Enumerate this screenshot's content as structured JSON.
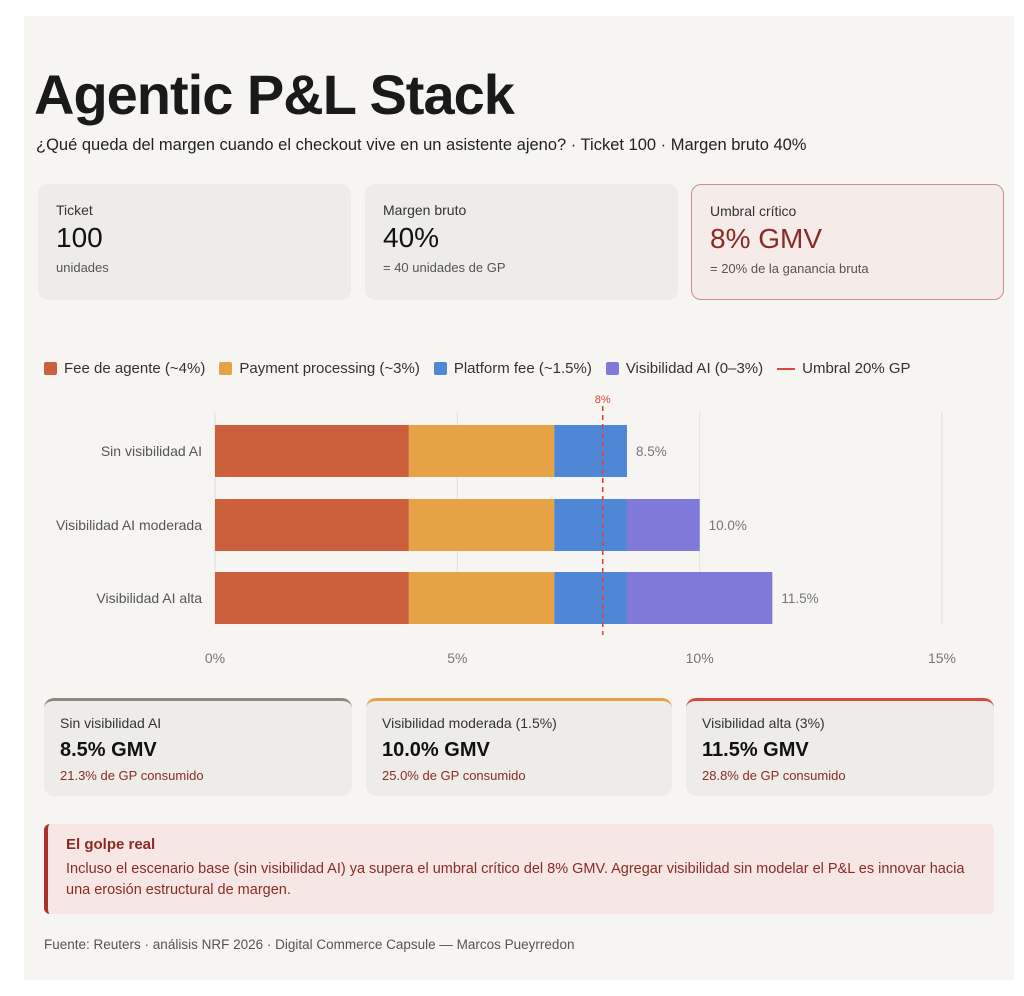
{
  "header": {
    "title": "Agentic P&L Stack",
    "subtitle": "¿Qué queda del margen cuando el checkout vive en un asistente ajeno? · Ticket 100 · Margen bruto 40%"
  },
  "kpis": [
    {
      "label": "Ticket",
      "value": "100",
      "note": "unidades"
    },
    {
      "label": "Margen bruto",
      "value": "40%",
      "note": "= 40 unidades de GP"
    },
    {
      "label": "Umbral crítico",
      "value": "8% GMV",
      "note": "= 20% de la ganancia bruta"
    }
  ],
  "legend": [
    {
      "label": "Fee de agente (~4%)",
      "color": "#cc5f3c"
    },
    {
      "label": "Payment processing (~3%)",
      "color": "#e6a346"
    },
    {
      "label": "Platform fee (~1.5%)",
      "color": "#4f86d6"
    },
    {
      "label": "Visibilidad AI (0–3%)",
      "color": "#7f79da"
    },
    {
      "label": "Umbral 20% GP",
      "color": "#d9473e"
    }
  ],
  "chart_data": {
    "type": "bar",
    "orientation": "horizontal",
    "stacked": true,
    "categories": [
      "Sin visibilidad AI",
      "Visibilidad AI moderada",
      "Visibilidad AI alta"
    ],
    "series": [
      {
        "name": "Fee de agente (~4%)",
        "color": "#cc5f3c",
        "values": [
          4,
          4,
          4
        ]
      },
      {
        "name": "Payment processing (~3%)",
        "color": "#e6a346",
        "values": [
          3,
          3,
          3
        ]
      },
      {
        "name": "Platform fee (~1.5%)",
        "color": "#4f86d6",
        "values": [
          1.5,
          1.5,
          1.5
        ]
      },
      {
        "name": "Visibilidad AI (0–3%)",
        "color": "#7f79da",
        "values": [
          0,
          1.5,
          3
        ]
      }
    ],
    "totals": [
      "8.5%",
      "10.0%",
      "11.5%"
    ],
    "xlim": [
      0,
      15
    ],
    "xticks": [
      0,
      5,
      10,
      15
    ],
    "xtick_labels": [
      "0%",
      "5%",
      "10%",
      "15%"
    ],
    "threshold": {
      "value": 8,
      "label": "8%",
      "color": "#d9473e"
    },
    "grid": true
  },
  "scenarios": [
    {
      "label": "Sin visibilidad AI",
      "value": "8.5% GMV",
      "note": "21.3% de GP consumido",
      "accent": "#8a8a80"
    },
    {
      "label": "Visibilidad moderada (1.5%)",
      "value": "10.0% GMV",
      "note": "25.0% de GP consumido",
      "accent": "#e6a346"
    },
    {
      "label": "Visibilidad alta (3%)",
      "value": "11.5% GMV",
      "note": "28.8% de GP consumido",
      "accent": "#d9473e"
    }
  ],
  "callout": {
    "title": "El golpe real",
    "body": "Incluso el escenario base (sin visibilidad AI) ya supera el umbral crítico del 8% GMV. Agregar visibilidad sin modelar el P&L es innovar hacia una erosión estructural de margen."
  },
  "source": "Fuente: Reuters · análisis NRF 2026 · Digital Commerce Capsule — Marcos Pueyrredon"
}
